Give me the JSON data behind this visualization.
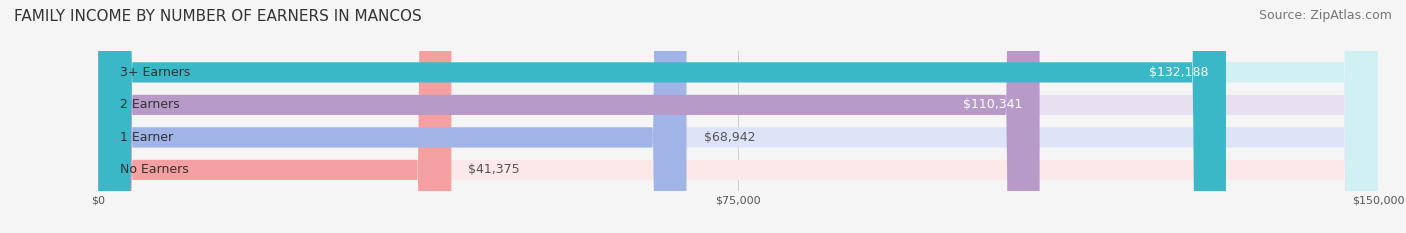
{
  "title": "FAMILY INCOME BY NUMBER OF EARNERS IN MANCOS",
  "source": "Source: ZipAtlas.com",
  "categories": [
    "No Earners",
    "1 Earner",
    "2 Earners",
    "3+ Earners"
  ],
  "values": [
    41375,
    68942,
    110341,
    132188
  ],
  "value_labels": [
    "$41,375",
    "$68,942",
    "$110,341",
    "$132,188"
  ],
  "bar_colors": [
    "#f4a0a0",
    "#a0b4e8",
    "#b89ac8",
    "#3ab8c8"
  ],
  "bar_bg_colors": [
    "#fce8e8",
    "#dde4f8",
    "#e8dff0",
    "#d0f0f4"
  ],
  "label_colors": [
    "#555555",
    "#555555",
    "#ffffff",
    "#ffffff"
  ],
  "xlim": [
    0,
    150000
  ],
  "xtick_values": [
    0,
    75000,
    150000
  ],
  "xtick_labels": [
    "$0",
    "$75,000",
    "$150,000"
  ],
  "title_fontsize": 11,
  "source_fontsize": 9,
  "label_fontsize": 9,
  "bar_height": 0.62,
  "background_color": "#f5f5f5"
}
